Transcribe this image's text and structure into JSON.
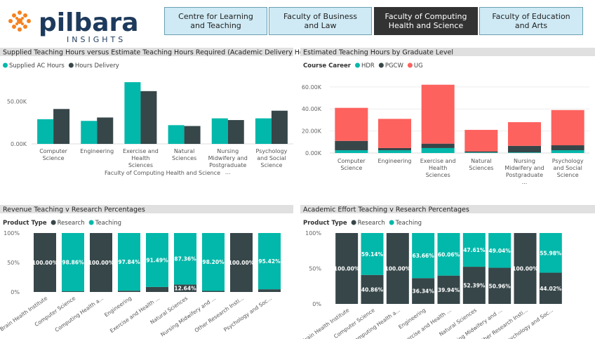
{
  "header": {
    "logo": {
      "name": "pilbara",
      "tagline": "INSIGHTS"
    },
    "tabs": [
      "Centre for Learning and Teaching",
      "Faculty of Business and Law",
      "Faculty of Computing Health and Science",
      "Faculty of Education and Arts"
    ],
    "selected": 2
  },
  "chart_data": [
    {
      "type": "bar",
      "stacked": false,
      "grid": false,
      "title": "Supplied Teaching Hours versus Estimate Teaching Hours Required (Academic Delivery Hours)",
      "x_label": "Faculty of Computing Health and Science",
      "categories": [
        "Computer Science",
        "Engineering",
        "Exercise and Health Sciences",
        "Natural Sciences",
        "Nursing Midwifery and Postgraduate ...",
        "Psychology and Social Science"
      ],
      "series": [
        {
          "name": "Supplied AC Hours",
          "color": "#01B8AA",
          "values": [
            29000,
            27000,
            72500,
            22000,
            30000,
            30000
          ]
        },
        {
          "name": "Hours Delivery",
          "color": "#374649",
          "values": [
            41000,
            31000,
            62000,
            21000,
            28000,
            39000
          ]
        }
      ],
      "ylim": [
        0,
        80000
      ],
      "yticks": [
        {
          "value": 0,
          "label": "0.00K"
        },
        {
          "value": 50000,
          "label": "50.00K"
        }
      ]
    },
    {
      "type": "bar",
      "stacked": true,
      "grid": true,
      "title": "Estimated Teaching Hours by Graduate Level",
      "legend_title": "Course Career",
      "categories": [
        "Computer Science",
        "Engineering",
        "Exercise and Health Sciences",
        "Natural Sciences",
        "Nursing Midwifery and Postgraduate ...",
        "Psychology and Social Science"
      ],
      "series": [
        {
          "name": "HDR",
          "color": "#01B8AA",
          "values": [
            2500,
            2500,
            4500,
            500,
            500,
            2500
          ]
        },
        {
          "name": "PGCW",
          "color": "#374649",
          "values": [
            8500,
            2000,
            4000,
            1000,
            6000,
            4500
          ]
        },
        {
          "name": "UG",
          "color": "#FD625E",
          "values": [
            30000,
            26500,
            53500,
            19500,
            21500,
            32000
          ]
        }
      ],
      "ylim": [
        0,
        65000
      ],
      "yticks": [
        {
          "value": 0,
          "label": "0.00K"
        },
        {
          "value": 20000,
          "label": "20.00K"
        },
        {
          "value": 40000,
          "label": "40.00K"
        },
        {
          "value": 60000,
          "label": "60.00K"
        }
      ]
    },
    {
      "type": "bar",
      "stacked": true,
      "grid": false,
      "title": "Revenue Teaching v Research Percentages",
      "legend_title": "Product Type",
      "categories": [
        "Brain Health Institute",
        "Computer Science",
        "Computing Health a...",
        "Engineering",
        "Exercise and Health ...",
        "Natural Sciences",
        "Nursing Midwifery and ...",
        "Other Research Insti...",
        "Psychology and Soc..."
      ],
      "series": [
        {
          "name": "Research",
          "color": "#374649",
          "values": [
            100,
            1.14,
            100,
            2.16,
            8.51,
            12.64,
            1.8,
            100,
            4.58
          ],
          "value_labels": [
            "100.00%",
            null,
            "100.00%",
            null,
            null,
            "12.64%",
            null,
            "100.00%",
            null
          ]
        },
        {
          "name": "Teaching",
          "color": "#01B8AA",
          "values": [
            0,
            98.86,
            0,
            97.84,
            91.49,
            87.36,
            98.2,
            0,
            95.42
          ],
          "value_labels": [
            null,
            "98.86%",
            null,
            "97.84%",
            "91.49%",
            "87.36%",
            "98.20%",
            null,
            "95.42%"
          ]
        }
      ],
      "ylim": [
        0,
        100
      ],
      "yticks": [
        {
          "value": 0,
          "label": "0%"
        },
        {
          "value": 50,
          "label": "50%"
        },
        {
          "value": 100,
          "label": "100%"
        }
      ]
    },
    {
      "type": "bar",
      "stacked": true,
      "grid": false,
      "title": "Academic Effort Teaching v Research Percentages",
      "legend_title": "Product Type",
      "categories": [
        "Brain Health Institute",
        "Computer Science",
        "Computing Health a...",
        "Engineering",
        "Exercise and Health ...",
        "Natural Sciences",
        "Nursing Midwifery and ...",
        "Other Research Insti...",
        "Psychology and Soc..."
      ],
      "series": [
        {
          "name": "Research",
          "color": "#374649",
          "values": [
            100,
            40.86,
            100,
            36.34,
            39.94,
            52.39,
            50.96,
            100,
            44.02
          ],
          "value_labels": [
            "100.00%",
            "40.86%",
            "100.00%",
            "36.34%",
            "39.94%",
            "52.39%",
            "50.96%",
            "100.00%",
            "44.02%"
          ]
        },
        {
          "name": "Teaching",
          "color": "#01B8AA",
          "values": [
            0,
            59.14,
            0,
            63.66,
            60.06,
            47.61,
            49.04,
            0,
            55.98
          ],
          "value_labels": [
            null,
            "59.14%",
            null,
            "63.66%",
            "60.06%",
            "47.61%",
            "49.04%",
            null,
            "55.98%"
          ]
        }
      ],
      "ylim": [
        0,
        100
      ],
      "yticks": [
        {
          "value": 0,
          "label": "0%"
        },
        {
          "value": 50,
          "label": "50%"
        },
        {
          "value": 100,
          "label": "100%"
        }
      ]
    }
  ]
}
